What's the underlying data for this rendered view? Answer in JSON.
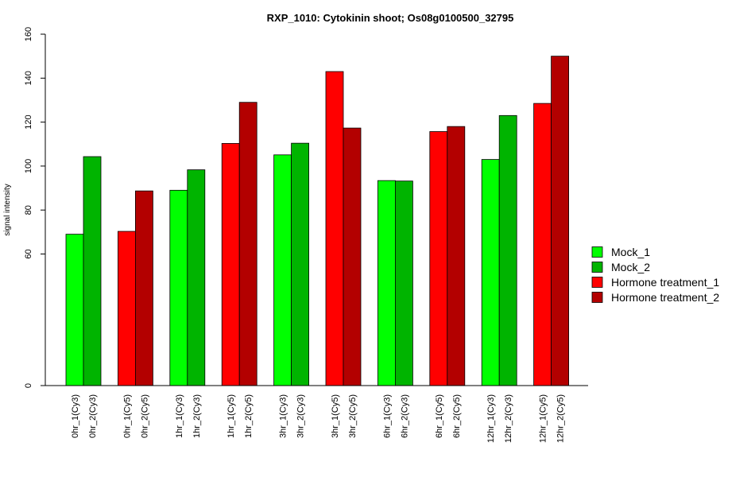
{
  "chart_data": {
    "type": "bar",
    "title": "RXP_1010: Cytokinin shoot; Os08g0100500_32795",
    "ylabel": "signal intensity",
    "xlabel": "",
    "y_ticks": [
      0,
      60,
      80,
      100,
      120,
      140,
      160
    ],
    "y_axis_break": "0 to 60 compressed",
    "categories": [
      "0hr_1(Cy3)",
      "0hr_2(Cy3)",
      "0hr_1(Cy5)",
      "0hr_2(Cy5)",
      "1hr_1(Cy3)",
      "1hr_2(Cy3)",
      "1hr_1(Cy5)",
      "1hr_2(Cy5)",
      "3hr_1(Cy3)",
      "3hr_2(Cy3)",
      "3hr_1(Cy5)",
      "3hr_2(Cy5)",
      "6hr_1(Cy3)",
      "6hr_2(Cy3)",
      "6hr_1(Cy5)",
      "6hr_2(Cy5)",
      "12hr_1(Cy3)",
      "12hr_2(Cy3)",
      "12hr_1(Cy5)",
      "12hr_2(Cy5)"
    ],
    "values": [
      69,
      104.3,
      70.3,
      88.7,
      89,
      98.3,
      110.3,
      129,
      105.1,
      110.4,
      143,
      117.3,
      93.4,
      93.2,
      115.7,
      118,
      103,
      123,
      128.5,
      150
    ],
    "series_index": [
      0,
      1,
      2,
      3,
      0,
      1,
      2,
      3,
      0,
      1,
      2,
      3,
      0,
      1,
      2,
      3,
      0,
      1,
      2,
      3
    ],
    "series": [
      {
        "name": "Mock_1",
        "color": "#00ff00"
      },
      {
        "name": "Mock_2",
        "color": "#00b400"
      },
      {
        "name": "Hormone treatment_1",
        "color": "#ff0000"
      },
      {
        "name": "Hormone treatment_2",
        "color": "#b30000"
      }
    ],
    "legend_position": "right",
    "grid": false
  }
}
